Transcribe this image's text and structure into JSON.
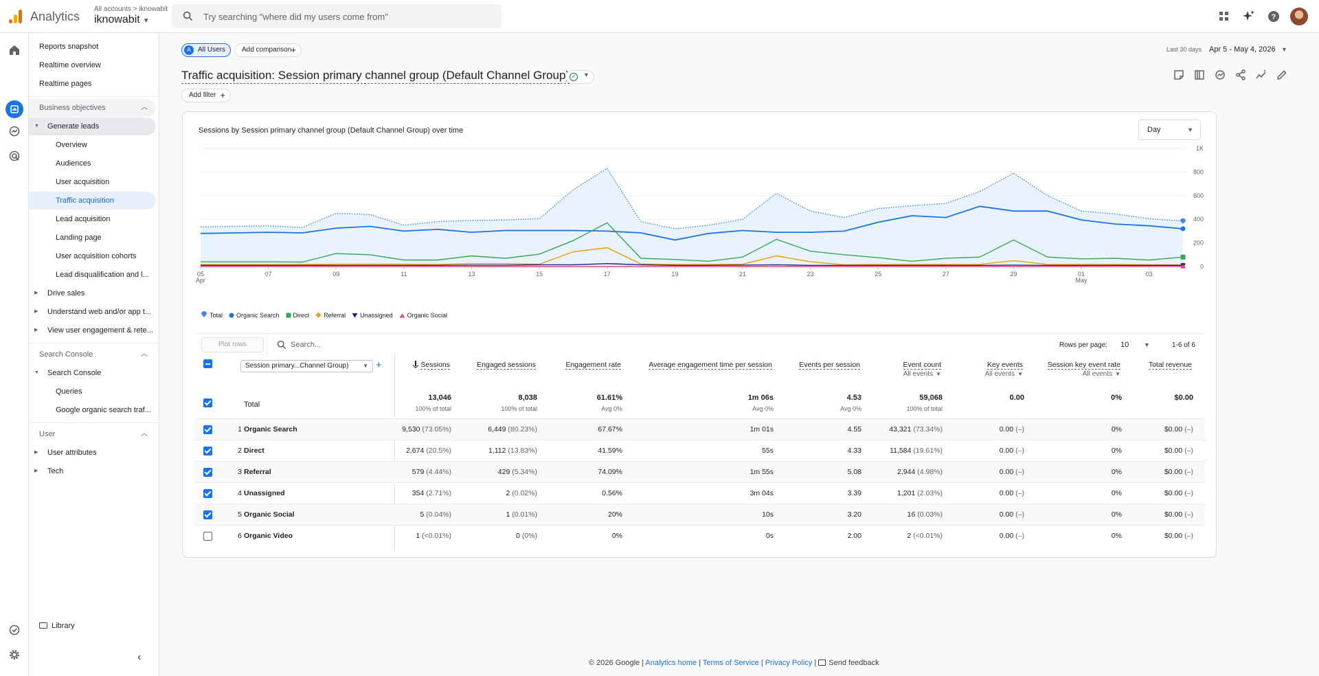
{
  "header": {
    "app_name": "Analytics",
    "breadcrumb": "All accounts > iknowabit",
    "account_name": "iknowabit",
    "search_placeholder": "Try searching \"where did my users come from\""
  },
  "nav": {
    "items": [
      {
        "label": "Reports snapshot"
      },
      {
        "label": "Realtime overview"
      },
      {
        "label": "Realtime pages"
      },
      {
        "label": "Business objectives"
      },
      {
        "label": "Generate leads"
      },
      {
        "label": "Overview"
      },
      {
        "label": "Audiences"
      },
      {
        "label": "User acquisition"
      },
      {
        "label": "Traffic acquisition"
      },
      {
        "label": "Lead acquisition"
      },
      {
        "label": "Landing page"
      },
      {
        "label": "User acquisition cohorts"
      },
      {
        "label": "Lead disqualification and l..."
      },
      {
        "label": "Drive sales"
      },
      {
        "label": "Understand web and/or app t..."
      },
      {
        "label": "View user engagement & rete..."
      },
      {
        "label": "Search Console"
      },
      {
        "label": "Search Console"
      },
      {
        "label": "Queries"
      },
      {
        "label": "Google organic search traf..."
      },
      {
        "label": "User"
      },
      {
        "label": "User attributes"
      },
      {
        "label": "Tech"
      }
    ],
    "library": "Library"
  },
  "toolbar": {
    "all_users": "All Users",
    "all_users_badge": "A",
    "add_comparison": "Add comparison",
    "date_label": "Last 30 days",
    "date_range": "Apr 5 - May 4, 2026",
    "report_title": "Traffic acquisition: Session primary channel group (Default Channel Group)",
    "add_filter": "Add filter"
  },
  "card": {
    "granularity": "Day",
    "plot_rows": "Plot rows",
    "search_placeholder": "Search...",
    "rows_per_page_label": "Rows per page:",
    "rows_per_page": "10",
    "range": "1-6 of 6"
  },
  "chart_data": {
    "type": "line",
    "title": "Sessions by Session primary channel group (Default Channel Group) over time",
    "x_ticks": [
      "05",
      "07",
      "09",
      "11",
      "13",
      "15",
      "17",
      "19",
      "21",
      "23",
      "25",
      "27",
      "29",
      "01",
      "03"
    ],
    "x_tick_sub": {
      "05": "Apr",
      "01": "May"
    },
    "x": [
      "Apr 5",
      "Apr 6",
      "Apr 7",
      "Apr 8",
      "Apr 9",
      "Apr 10",
      "Apr 11",
      "Apr 12",
      "Apr 13",
      "Apr 14",
      "Apr 15",
      "Apr 16",
      "Apr 17",
      "Apr 18",
      "Apr 19",
      "Apr 20",
      "Apr 21",
      "Apr 22",
      "Apr 23",
      "Apr 24",
      "Apr 25",
      "Apr 26",
      "Apr 27",
      "Apr 28",
      "Apr 29",
      "Apr 30",
      "May 1",
      "May 2",
      "May 3",
      "May 4"
    ],
    "y_ticks": [
      "0",
      "200",
      "400",
      "600",
      "800",
      "1K"
    ],
    "ylim": [
      0,
      1000
    ],
    "legend_position": "bottom-left",
    "series": [
      {
        "name": "Total",
        "color": "#4285f4",
        "style": "dotted-area",
        "marker": "teardrop",
        "values": [
          335,
          340,
          345,
          330,
          450,
          440,
          350,
          380,
          390,
          395,
          405,
          650,
          830,
          380,
          320,
          350,
          400,
          620,
          470,
          415,
          490,
          515,
          535,
          635,
          790,
          600,
          470,
          445,
          405,
          385
        ]
      },
      {
        "name": "Organic Search",
        "color": "#1a73e8",
        "style": "solid",
        "marker": "circle",
        "values": [
          280,
          285,
          290,
          285,
          325,
          340,
          300,
          315,
          290,
          305,
          305,
          305,
          300,
          285,
          225,
          280,
          305,
          290,
          290,
          300,
          375,
          430,
          415,
          510,
          470,
          470,
          395,
          360,
          345,
          320
        ]
      },
      {
        "name": "Direct",
        "color": "#34a853",
        "style": "solid",
        "marker": "square",
        "values": [
          40,
          40,
          40,
          38,
          110,
          100,
          55,
          55,
          90,
          70,
          105,
          220,
          370,
          70,
          60,
          45,
          80,
          230,
          130,
          100,
          75,
          45,
          70,
          80,
          225,
          80,
          65,
          70,
          55,
          80
        ]
      },
      {
        "name": "Referral",
        "color": "#f29900",
        "style": "solid",
        "marker": "diamond",
        "values": [
          18,
          18,
          18,
          18,
          20,
          20,
          20,
          18,
          25,
          25,
          20,
          125,
          160,
          22,
          18,
          18,
          20,
          90,
          40,
          15,
          18,
          18,
          18,
          18,
          50,
          18,
          18,
          18,
          15,
          15
        ]
      },
      {
        "name": "Unassigned",
        "color": "#1e1e8c",
        "style": "solid",
        "marker": "triangle-down",
        "values": [
          10,
          10,
          10,
          10,
          10,
          10,
          10,
          10,
          12,
          12,
          15,
          15,
          25,
          15,
          10,
          10,
          12,
          15,
          10,
          10,
          10,
          10,
          10,
          10,
          12,
          10,
          10,
          10,
          10,
          10
        ]
      },
      {
        "name": "Organic Social",
        "color": "#e8457f",
        "style": "solid",
        "marker": "triangle-up",
        "values": [
          0,
          0,
          0,
          0,
          0,
          0,
          0,
          0,
          0,
          0,
          0,
          0,
          0,
          0,
          0,
          0,
          0,
          0,
          0,
          0,
          0,
          0,
          0,
          0,
          0,
          0,
          0,
          1,
          2,
          2
        ]
      }
    ]
  },
  "table": {
    "dimension_label": "Session primary...Channel Group)",
    "columns": [
      {
        "label": "Sessions",
        "sub": ""
      },
      {
        "label": "Engaged sessions",
        "sub": ""
      },
      {
        "label": "Engagement rate",
        "sub": ""
      },
      {
        "label": "Average engagement time per session",
        "sub": ""
      },
      {
        "label": "Events per session",
        "sub": ""
      },
      {
        "label": "Event count",
        "sub": "All events"
      },
      {
        "label": "Key events",
        "sub": "All events"
      },
      {
        "label": "Session key event rate",
        "sub": "All events"
      },
      {
        "label": "Total revenue",
        "sub": ""
      }
    ],
    "totals": {
      "label": "Total",
      "values": [
        "13,046",
        "8,038",
        "61.61%",
        "1m 06s",
        "4.53",
        "59,068",
        "0.00",
        "0%",
        "$0.00"
      ],
      "subs": [
        "100% of total",
        "100% of total",
        "Avg 0%",
        "Avg 0%",
        "Avg 0%",
        "100% of total",
        "",
        "",
        ""
      ]
    },
    "rows": [
      {
        "index": "1",
        "name": "Organic Search",
        "checked": true,
        "cells": [
          [
            "9,530",
            "(73.05%)"
          ],
          [
            "6,449",
            "(80.23%)"
          ],
          [
            "67.67%",
            ""
          ],
          [
            "1m 01s",
            ""
          ],
          [
            "4.55",
            ""
          ],
          [
            "43,321",
            "(73.34%)"
          ],
          [
            "0.00",
            "(–)"
          ],
          [
            "0%",
            ""
          ],
          [
            "$0.00",
            "(–)"
          ]
        ]
      },
      {
        "index": "2",
        "name": "Direct",
        "checked": true,
        "cells": [
          [
            "2,674",
            "(20.5%)"
          ],
          [
            "1,112",
            "(13.83%)"
          ],
          [
            "41.59%",
            ""
          ],
          [
            "55s",
            ""
          ],
          [
            "4.33",
            ""
          ],
          [
            "11,584",
            "(19.61%)"
          ],
          [
            "0.00",
            "(–)"
          ],
          [
            "0%",
            ""
          ],
          [
            "$0.00",
            "(–)"
          ]
        ]
      },
      {
        "index": "3",
        "name": "Referral",
        "checked": true,
        "cells": [
          [
            "579",
            "(4.44%)"
          ],
          [
            "429",
            "(5.34%)"
          ],
          [
            "74.09%",
            ""
          ],
          [
            "1m 55s",
            ""
          ],
          [
            "5.08",
            ""
          ],
          [
            "2,944",
            "(4.98%)"
          ],
          [
            "0.00",
            "(–)"
          ],
          [
            "0%",
            ""
          ],
          [
            "$0.00",
            "(–)"
          ]
        ]
      },
      {
        "index": "4",
        "name": "Unassigned",
        "checked": true,
        "cells": [
          [
            "354",
            "(2.71%)"
          ],
          [
            "2",
            "(0.02%)"
          ],
          [
            "0.56%",
            ""
          ],
          [
            "3m 04s",
            ""
          ],
          [
            "3.39",
            ""
          ],
          [
            "1,201",
            "(2.03%)"
          ],
          [
            "0.00",
            "(–)"
          ],
          [
            "0%",
            ""
          ],
          [
            "$0.00",
            "(–)"
          ]
        ]
      },
      {
        "index": "5",
        "name": "Organic Social",
        "checked": true,
        "cells": [
          [
            "5",
            "(0.04%)"
          ],
          [
            "1",
            "(0.01%)"
          ],
          [
            "20%",
            ""
          ],
          [
            "10s",
            ""
          ],
          [
            "3.20",
            ""
          ],
          [
            "16",
            "(0.03%)"
          ],
          [
            "0.00",
            "(–)"
          ],
          [
            "0%",
            ""
          ],
          [
            "$0.00",
            "(–)"
          ]
        ]
      },
      {
        "index": "6",
        "name": "Organic Video",
        "checked": false,
        "cells": [
          [
            "1",
            "(<0.01%)"
          ],
          [
            "0",
            "(0%)"
          ],
          [
            "0%",
            ""
          ],
          [
            "0s",
            ""
          ],
          [
            "2.00",
            ""
          ],
          [
            "2",
            "(<0.01%)"
          ],
          [
            "0.00",
            "(–)"
          ],
          [
            "0%",
            ""
          ],
          [
            "$0.00",
            "(–)"
          ]
        ]
      }
    ]
  },
  "footer": {
    "copyright": "© 2026 Google |",
    "analytics_home": "Analytics home",
    "sep1": "|",
    "terms": "Terms of Service",
    "sep2": "|",
    "privacy": "Privacy Policy",
    "sep3": "|",
    "feedback": "Send feedback"
  }
}
